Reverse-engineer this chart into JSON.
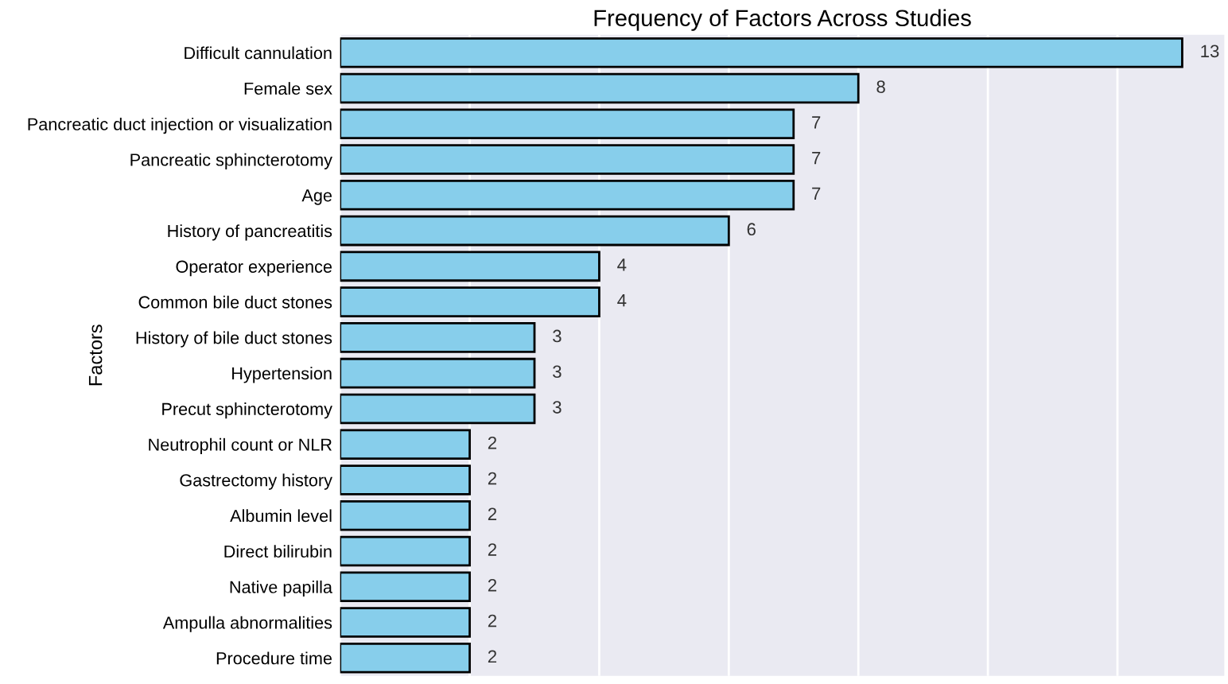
{
  "chart_data": {
    "type": "bar",
    "orientation": "horizontal",
    "title": "Frequency of Factors Across Studies",
    "ylabel": "Factors",
    "categories": [
      "Difficult cannulation",
      "Female sex",
      "Pancreatic duct injection or visualization",
      "Pancreatic sphincterotomy",
      "Age",
      "History of pancreatitis",
      "Operator experience",
      "Common bile duct stones",
      "History of bile duct stones",
      "Hypertension",
      "Precut sphincterotomy",
      "Neutrophil count or NLR",
      "Gastrectomy history",
      "Albumin level",
      "Direct bilirubin",
      "Native papilla",
      "Ampulla abnormalities",
      "Procedure time"
    ],
    "values": [
      13,
      8,
      7,
      7,
      7,
      6,
      4,
      4,
      3,
      3,
      3,
      2,
      2,
      2,
      2,
      2,
      2,
      2
    ],
    "color": "#87ceeb",
    "data_labels": true,
    "xlim": [
      0,
      13.65
    ],
    "xticks": [
      {
        "value": 0,
        "label": null
      },
      {
        "value": 2,
        "label": null
      },
      {
        "value": 4,
        "label": null
      },
      {
        "value": 6,
        "label": null
      },
      {
        "value": 8,
        "label": null
      },
      {
        "value": 10,
        "label": null
      },
      {
        "value": 12,
        "label": null
      }
    ],
    "tick_labels": "y",
    "grid": "x"
  }
}
